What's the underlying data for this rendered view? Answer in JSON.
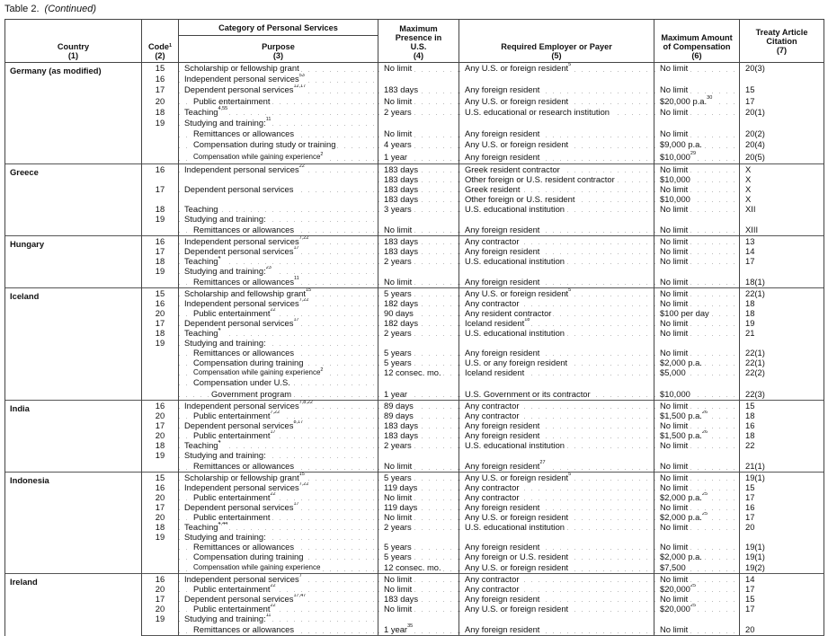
{
  "caption": {
    "label": "Table 2.",
    "continued": "(Continued)"
  },
  "headers": {
    "country": "Country",
    "country_num": "(1)",
    "code": "Code",
    "code_sup": "1",
    "code_num": "(2)",
    "category": "Category of Personal Services",
    "purpose": "Purpose",
    "purpose_num": "(3)",
    "presence": "Maximum Presence in U.S.",
    "presence_num": "(4)",
    "employer": "Required Employer or Payer",
    "employer_num": "(5)",
    "comp": "Maximum Amount of Compensation",
    "comp_num": "(6)",
    "article": "Treaty Article Citation",
    "article_num": "(7)"
  },
  "sections": [
    {
      "country": "Germany (as modified)",
      "rows": [
        {
          "code": "15",
          "purpose": "Scholarship or fellowship grant",
          "presence": "No limit",
          "employer": "Any U.S. or foreign resident",
          "employer_sup": "5",
          "comp": "No limit",
          "article": "20(3)"
        },
        {
          "code": "16",
          "purpose": "Independent personal services",
          "purpose_sup": "53"
        },
        {
          "code": "17",
          "purpose": "Dependent personal services",
          "purpose_sup": "12,17",
          "presence": "183 days",
          "employer": "Any foreign resident",
          "comp": "No limit",
          "article": "15"
        },
        {
          "code": "20",
          "purpose": "Public entertainment",
          "indent": 1,
          "presence": "No limit",
          "employer": "Any U.S. or foreign resident",
          "comp": "$20,000 p.a.",
          "comp_sup": "30",
          "article": "17"
        },
        {
          "code": "18",
          "purpose": "Teaching",
          "purpose_sup": "4,55",
          "presence": "2 years",
          "employer": "U.S. educational or research institution",
          "comp": "No limit",
          "article": "20(1)"
        },
        {
          "code": "19",
          "purpose": "Studying and training:",
          "purpose_sup": "11"
        },
        {
          "purpose": "Remittances or allowances",
          "indent": 1,
          "presence": "No limit",
          "employer": "Any foreign resident",
          "comp": "No limit",
          "article": "20(2)"
        },
        {
          "purpose": "Compensation during study or training",
          "indent": 1,
          "presence": "4 years",
          "employer": "Any U.S. or foreign resident",
          "comp": "$9,000 p.a.",
          "article": "20(4)"
        },
        {
          "purpose": "Compensation while gaining experience",
          "purpose_sup": "2",
          "indent": 1,
          "small": true,
          "presence": "1 year",
          "employer": "Any foreign resident",
          "comp": "$10,000",
          "comp_sup": "29",
          "article": "20(5)"
        }
      ]
    },
    {
      "country": "Greece",
      "rows": [
        {
          "code": "16",
          "purpose": "Independent personal services",
          "purpose_sup": "22",
          "presence": "183 days",
          "employer": "Greek resident contractor",
          "comp": "No limit",
          "article": "X"
        },
        {
          "presence": "183 days",
          "employer": "Other foreign or U.S. resident contractor",
          "comp": "$10,000",
          "article": "X"
        },
        {
          "code": "17",
          "purpose": "Dependent personal services",
          "presence": "183 days",
          "employer": "Greek resident",
          "comp": "No limit",
          "article": "X"
        },
        {
          "presence": "183 days",
          "employer": "Other foreign or U.S. resident",
          "comp": "$10,000",
          "article": "X"
        },
        {
          "code": "18",
          "purpose": "Teaching",
          "presence": "3 years",
          "employer": "U.S. educational institution",
          "comp": "No limit",
          "article": "XII"
        },
        {
          "code": "19",
          "purpose": "Studying and training:"
        },
        {
          "purpose": "Remittances or allowances",
          "indent": 1,
          "presence": "No limit",
          "employer": "Any foreign resident",
          "comp": "No limit",
          "article": "XIII"
        }
      ]
    },
    {
      "country": "Hungary",
      "rows": [
        {
          "code": "16",
          "purpose": "Independent personal services",
          "purpose_sup": "7,22",
          "presence": "183 days",
          "employer": "Any contractor",
          "comp": "No limit",
          "article": "13"
        },
        {
          "code": "17",
          "purpose": "Dependent personal services",
          "purpose_sup": "17",
          "presence": "183 days",
          "employer": "Any foreign resident",
          "comp": "No limit",
          "article": "14"
        },
        {
          "code": "18",
          "purpose": "Teaching",
          "purpose_sup": "4",
          "presence": "2 years",
          "employer": "U.S. educational institution",
          "comp": "No limit",
          "article": "17"
        },
        {
          "code": "19",
          "purpose": "Studying and training:",
          "purpose_sup": "23"
        },
        {
          "purpose": "Remittances or allowances",
          "purpose_sup": "11",
          "indent": 1,
          "presence": "No limit",
          "employer": "Any foreign resident",
          "comp": "No limit",
          "article": "18(1)"
        }
      ]
    },
    {
      "country": "Iceland",
      "rows": [
        {
          "code": "15",
          "purpose": "Scholarship and fellowship grant",
          "purpose_sup": "15",
          "presence": "5 years",
          "employer": "Any U.S. or foreign resident",
          "employer_sup": "5",
          "comp": "No limit",
          "article": "22(1)"
        },
        {
          "code": "16",
          "purpose": "Independent personal services",
          "purpose_sup": "7,22",
          "presence": "182 days",
          "employer": "Any contractor",
          "comp": "No limit",
          "article": "18"
        },
        {
          "code": "20",
          "purpose": "Public entertainment",
          "purpose_sup": "22",
          "indent": 1,
          "presence": "90 days",
          "employer": "Any resident contractor",
          "comp": "$100 per day",
          "article": "18"
        },
        {
          "code": "17",
          "purpose": "Dependent personal services",
          "purpose_sup": "17",
          "presence": "182 days",
          "employer": "Iceland resident",
          "employer_sup": "18",
          "comp": "No limit",
          "article": "19"
        },
        {
          "code": "18",
          "purpose": "Teaching",
          "purpose_sup": "4",
          "presence": "2 years",
          "employer": "U.S. educational institution",
          "comp": "No limit",
          "article": "21"
        },
        {
          "code": "19",
          "purpose": "Studying and training:"
        },
        {
          "purpose": "Remittances or allowances",
          "indent": 1,
          "presence": "5 years",
          "employer": "Any foreign resident",
          "comp": "No limit",
          "article": "22(1)"
        },
        {
          "purpose": "Compensation during training",
          "indent": 1,
          "presence": "5 years",
          "employer": "U.S. or any foreign resident",
          "comp": "$2,000 p.a.",
          "article": "22(1)"
        },
        {
          "purpose": "Compensation while gaining experience",
          "purpose_sup": "2",
          "indent": 1,
          "small": true,
          "presence": "12 consec. mo.",
          "employer": "Iceland resident",
          "comp": "$5,000",
          "article": "22(2)"
        },
        {
          "purpose": "Compensation under U.S.",
          "indent": 1
        },
        {
          "purpose": "Government program",
          "indent": 2,
          "presence": "1 year",
          "employer": "U.S. Government or its contractor",
          "comp": "$10,000",
          "article": "22(3)"
        }
      ]
    },
    {
      "country": "India",
      "rows": [
        {
          "code": "16",
          "purpose": "Independent personal services",
          "purpose_sup": "7,8,22",
          "presence": "89 days",
          "employer": "Any contractor",
          "comp": "No limit",
          "article": "15"
        },
        {
          "code": "20",
          "purpose": "Public entertainment",
          "purpose_sup": "7,22",
          "indent": 1,
          "presence": "89 days",
          "employer": "Any contractor",
          "comp": "$1,500 p.a.",
          "comp_sup": "26",
          "article": "18"
        },
        {
          "code": "17",
          "purpose": "Dependent personal services",
          "purpose_sup": "8,17",
          "presence": "183 days",
          "employer": "Any foreign resident",
          "comp": "No limit",
          "article": "16"
        },
        {
          "code": "20",
          "purpose": "Public entertainment",
          "purpose_sup": "17",
          "indent": 1,
          "presence": "183 days",
          "employer": "Any foreign resident",
          "comp": "$1,500 p.a.",
          "comp_sup": "26",
          "article": "18"
        },
        {
          "code": "18",
          "purpose": "Teaching",
          "purpose_sup": "4",
          "presence": "2 years",
          "employer": "U.S. educational institution",
          "comp": "No limit",
          "article": "22"
        },
        {
          "code": "19",
          "purpose": "Studying and training:"
        },
        {
          "purpose": "Remittances or allowances",
          "indent": 1,
          "presence": "No limit",
          "employer": "Any foreign resident",
          "employer_sup": "27",
          "comp": "No limit",
          "article": "21(1)"
        }
      ]
    },
    {
      "country": "Indonesia",
      "rows": [
        {
          "code": "15",
          "purpose": "Scholarship or fellowship grant",
          "purpose_sup": "15",
          "presence": "5 years",
          "employer": "Any U.S. or foreign resident",
          "employer_sup": "5",
          "comp": "No limit",
          "article": "19(1)"
        },
        {
          "code": "16",
          "purpose": "Independent personal services",
          "purpose_sup": "7,22",
          "presence": "119 days",
          "employer": "Any contractor",
          "comp": "No limit",
          "article": "15"
        },
        {
          "code": "20",
          "purpose": "Public entertainment",
          "purpose_sup": "22",
          "indent": 1,
          "presence": "No limit",
          "employer": "Any contractor",
          "comp": "$2,000 p.a.",
          "comp_sup": "25",
          "article": "17"
        },
        {
          "code": "17",
          "purpose": "Dependent personal services",
          "purpose_sup": "17",
          "presence": "119 days",
          "employer": "Any foreign resident",
          "comp": "No limit",
          "article": "16"
        },
        {
          "code": "20",
          "purpose": "Public entertainment",
          "indent": 1,
          "presence": "No limit",
          "employer": "Any U.S. or foreign resident",
          "comp": "$2,000 p.a.",
          "comp_sup": "25",
          "article": "17"
        },
        {
          "code": "18",
          "purpose": "Teaching",
          "purpose_sup": "4,44",
          "presence": "2 years",
          "employer": "U.S. educational institution",
          "comp": "No limit",
          "article": "20"
        },
        {
          "code": "19",
          "purpose": "Studying and training:"
        },
        {
          "purpose": "Remittances or allowances",
          "indent": 1,
          "presence": "5 years",
          "employer": "Any foreign resident",
          "comp": "No limit",
          "article": "19(1)"
        },
        {
          "purpose": "Compensation during training",
          "indent": 1,
          "presence": "5 years",
          "employer": "Any foreign or U.S. resident",
          "comp": "$2,000 p.a.",
          "article": "19(1)"
        },
        {
          "purpose": "Compensation while gaining experience",
          "indent": 1,
          "small": true,
          "presence": "12 consec. mo.",
          "employer": "Any U.S. or foreign resident",
          "comp": "$7,500",
          "article": "19(2)"
        }
      ]
    },
    {
      "country": "Ireland",
      "rows": [
        {
          "code": "16",
          "purpose": "Independent personal services",
          "purpose_sup": "7",
          "presence": "No limit",
          "employer": "Any contractor",
          "comp": "No limit",
          "article": "14"
        },
        {
          "code": "20",
          "purpose": "Public entertainment",
          "purpose_sup": "22",
          "indent": 1,
          "presence": "No limit",
          "employer": "Any contractor",
          "comp": "$20,000",
          "comp_sup": "25",
          "article": "17"
        },
        {
          "code": "17",
          "purpose": "Dependent personal services",
          "purpose_sup": "17,47",
          "presence": "183 days",
          "employer": "Any foreign resident",
          "comp": "No limit",
          "article": "15"
        },
        {
          "code": "20",
          "purpose": "Public entertainment",
          "purpose_sup": "22",
          "indent": 1,
          "presence": "No limit",
          "employer": "Any U.S. or foreign resident",
          "comp": "$20,000",
          "comp_sup": "25",
          "article": "17"
        },
        {
          "code": "19",
          "purpose": "Studying and training:",
          "purpose_sup": "11"
        },
        {
          "purpose": "Remittances or allowances",
          "indent": 1,
          "presence": "1 year",
          "presence_sup": "35",
          "employer": "Any foreign resident",
          "comp": "No limit",
          "article": "20"
        }
      ]
    }
  ]
}
